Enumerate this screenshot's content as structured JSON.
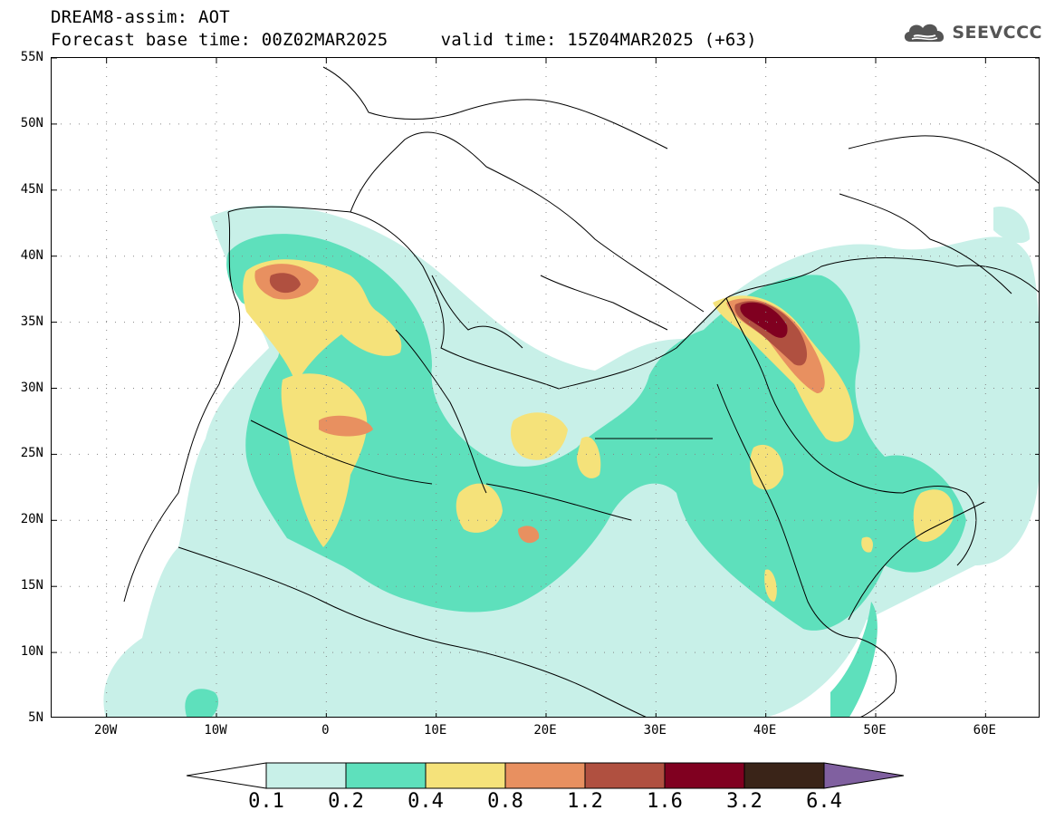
{
  "header": {
    "line1": "DREAM8-assim: AOT",
    "line2": "Forecast base time: 00Z02MAR2025     valid time: 15Z04MAR2025 (+63)"
  },
  "logo": {
    "text": "SEEVCCC",
    "icon": "cloud-icon"
  },
  "axes": {
    "lat_labels": [
      "55N",
      "50N",
      "45N",
      "40N",
      "35N",
      "30N",
      "25N",
      "20N",
      "15N",
      "10N",
      "5N"
    ],
    "lon_labels": [
      "20W",
      "10W",
      "0",
      "10E",
      "20E",
      "30E",
      "40E",
      "50E",
      "60E"
    ],
    "lat_range": [
      5,
      55
    ],
    "lon_range": [
      -25,
      65
    ]
  },
  "colorbar": {
    "labels": [
      "0.1",
      "0.2",
      "0.4",
      "0.8",
      "1.2",
      "1.6",
      "3.2",
      "6.4"
    ],
    "colors": [
      "#ffffff",
      "#c8f0e8",
      "#5ee0bc",
      "#f5e27a",
      "#e89060",
      "#b05040",
      "#800020",
      "#3a2418",
      "#8060a0"
    ]
  }
}
